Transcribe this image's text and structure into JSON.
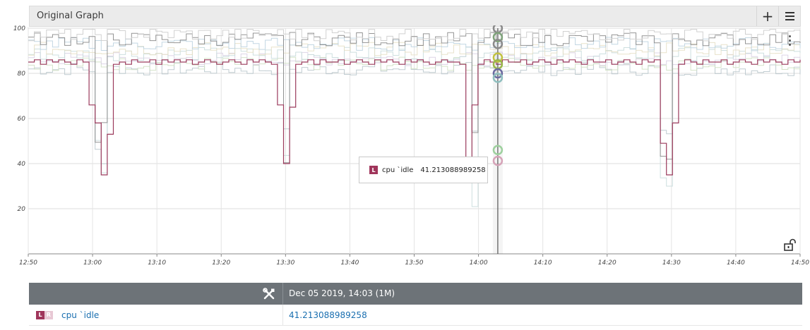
{
  "panel": {
    "title": "Original Graph",
    "add_label": "+",
    "menu_icon": "hamburger-menu-icon",
    "options_icon": "kebab-vertical-icon",
    "lock_icon": "unlock-icon"
  },
  "chart_data": {
    "type": "line",
    "title": "Original Graph",
    "xlabel": "",
    "ylabel": "",
    "ylim": [
      0,
      100
    ],
    "y_ticks": [
      20,
      40,
      60,
      80,
      100
    ],
    "x_ticks": [
      "12:50",
      "13:00",
      "13:10",
      "13:20",
      "13:30",
      "13:40",
      "13:50",
      "14:00",
      "14:10",
      "14:20",
      "14:30",
      "14:40",
      "14:50"
    ],
    "grid": true,
    "highlighted_series": {
      "name": "cpu `idle",
      "color": "#9b3a5c",
      "values": [
        85,
        86,
        84,
        86,
        85,
        86,
        85,
        84,
        86,
        85,
        66,
        58,
        35,
        53,
        84,
        85,
        84,
        86,
        85,
        85,
        86,
        84,
        86,
        85,
        86,
        85,
        86,
        84,
        85,
        86,
        85,
        84,
        85,
        86,
        85,
        84,
        86,
        85,
        86,
        85,
        84,
        66,
        40,
        65,
        84,
        85,
        86,
        84,
        86,
        85,
        85,
        86,
        84,
        85,
        86,
        85,
        84,
        86,
        85,
        86,
        85,
        84,
        86,
        85,
        86,
        85,
        84,
        85,
        86,
        85,
        85,
        84,
        41,
        66,
        84,
        86,
        85,
        84,
        86,
        85,
        85,
        86,
        84,
        85,
        86,
        85,
        84,
        86,
        85,
        86,
        85,
        84,
        86,
        85,
        85,
        86,
        84,
        85,
        86,
        85,
        84,
        86,
        85,
        86,
        49,
        35,
        58,
        84,
        86,
        85,
        84,
        86,
        85,
        85,
        86,
        84,
        85,
        86,
        85,
        84,
        86,
        85,
        86,
        85,
        84,
        86,
        85,
        86
      ]
    },
    "background_series_colors": [
      "#b9c6cc",
      "#cfe0c3",
      "#d9d0e3",
      "#c8dcdc",
      "#e6dfc5",
      "#bcd3e0",
      "#888888",
      "#cccccc"
    ],
    "cursor_x": "14:03",
    "cursor_markers": [
      {
        "value": 100,
        "color": "#8a8a8a"
      },
      {
        "value": 96,
        "color": "#7fa37a"
      },
      {
        "value": 93,
        "color": "#8a8a8a"
      },
      {
        "value": 87,
        "color": "#c2c240"
      },
      {
        "value": 84,
        "color": "#9ab84a"
      },
      {
        "value": 80,
        "color": "#6a6aa0"
      },
      {
        "value": 78,
        "color": "#8fbfbf"
      },
      {
        "value": 46,
        "color": "#9ed09e"
      },
      {
        "value": 41.213088989258,
        "color": "#d6a3b8"
      }
    ]
  },
  "tooltip": {
    "badge": "L",
    "series_name": "cpu `idle",
    "value": "41.213088989258",
    "badge_color": "#a0355b"
  },
  "table": {
    "tools_icon": "tools-icon",
    "header_date": "Dec 05 2019, 14:03  (1M)",
    "rows": [
      {
        "badge_l": "L",
        "badge_r": "R",
        "name": "cpu `idle",
        "value": "41.213088989258"
      }
    ]
  }
}
